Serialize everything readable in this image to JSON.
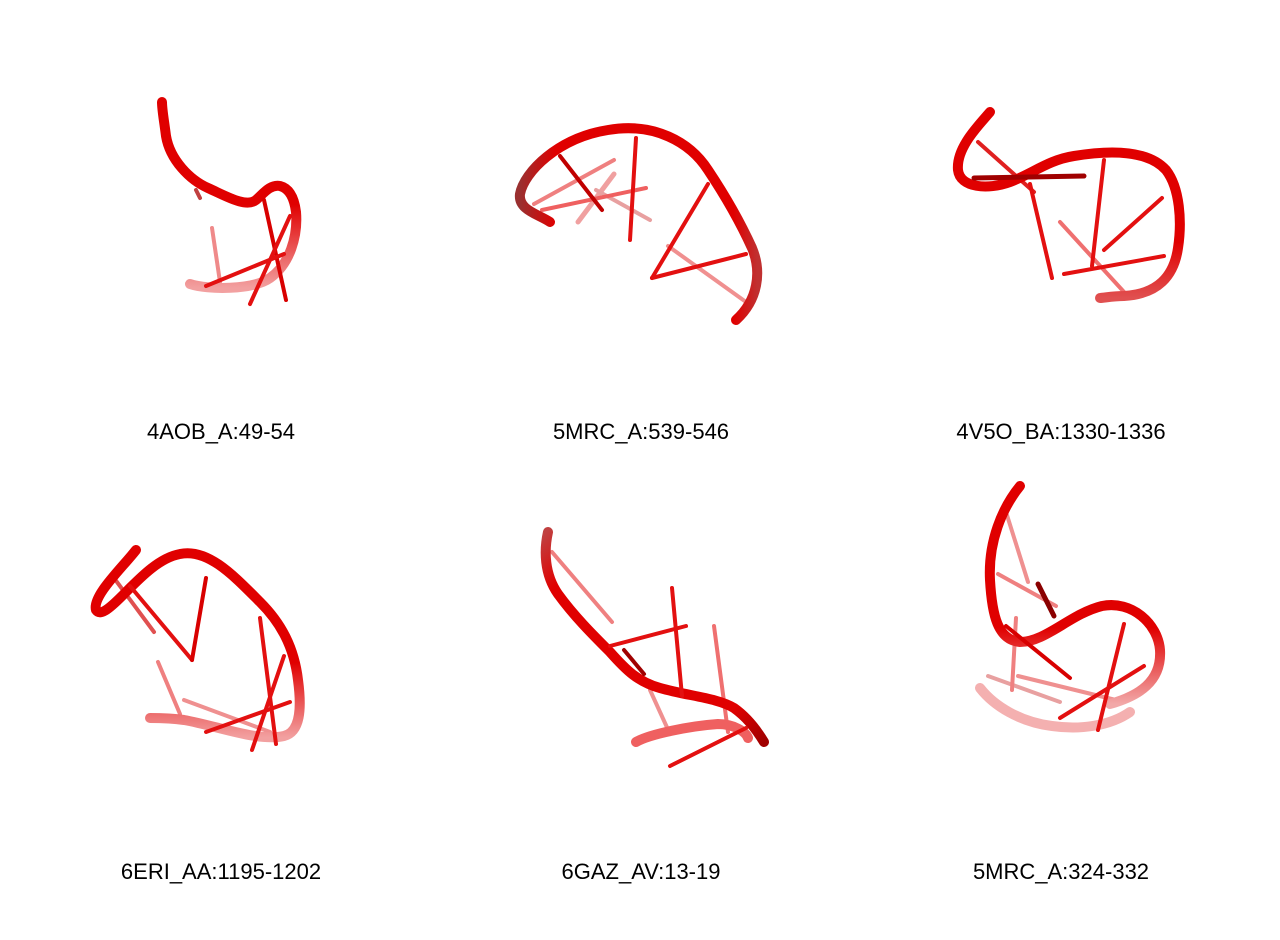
{
  "colors": {
    "backbone": "#e00000",
    "backbone_dark": "#9a0000",
    "backbone_faded": "#f28a8a",
    "stick": "#e31010",
    "stick_faded": "#f0a0a0"
  },
  "panels": [
    {
      "label": "4AOB_A:49-54"
    },
    {
      "label": "5MRC_A:539-546"
    },
    {
      "label": "4V5O_BA:1330-1336"
    },
    {
      "label": "6ERI_AA:1195-1202"
    },
    {
      "label": "6GAZ_AV:13-19"
    },
    {
      "label": "5MRC_A:324-332"
    }
  ]
}
